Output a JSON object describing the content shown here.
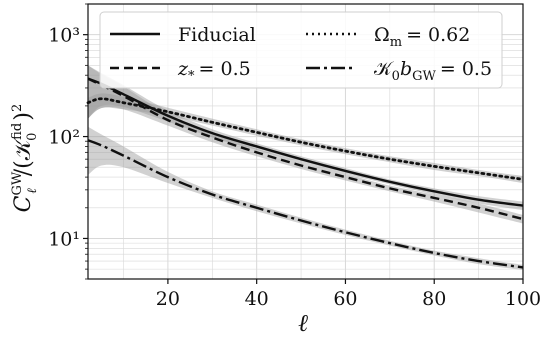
{
  "chart_data": {
    "type": "line",
    "xlabel": "ℓ",
    "ylabel": "C_ℓ^GW / (𝒦_0^fid)^2",
    "xlim": [
      2,
      100
    ],
    "ylim": [
      4,
      2000
    ],
    "yscale": "log",
    "grid": true,
    "legend_position": "top",
    "x_ticks": [
      20,
      40,
      60,
      80,
      100
    ],
    "y_ticks": [
      10,
      100,
      1000
    ],
    "y_tick_labels": [
      "10¹",
      "10²",
      "10³"
    ],
    "x": [
      2,
      5,
      10,
      20,
      30,
      40,
      50,
      60,
      70,
      80,
      90,
      100
    ],
    "series": [
      {
        "name": "Fiducial",
        "style": "solid",
        "values": [
          370,
          330,
          260,
          160,
          108,
          80,
          60,
          46,
          36,
          29,
          24,
          21
        ],
        "band_lower": [
          150,
          200,
          195,
          140,
          98,
          74,
          56,
          43,
          34,
          27,
          22,
          19
        ],
        "band_upper": [
          500,
          420,
          320,
          180,
          118,
          86,
          64,
          49,
          38,
          31,
          26,
          23
        ]
      },
      {
        "name": "z_* = 0.5",
        "style": "dashed",
        "values": [
          370,
          320,
          250,
          145,
          98,
          70,
          52,
          40,
          31,
          25,
          20,
          15.5
        ],
        "band_lower": [
          150,
          190,
          185,
          128,
          88,
          64,
          48,
          37,
          29,
          23,
          18,
          14
        ],
        "band_upper": [
          500,
          410,
          310,
          165,
          108,
          76,
          56,
          43,
          33,
          27,
          22,
          17
        ]
      },
      {
        "name": "Ω_m = 0.62",
        "style": "dotted",
        "values": [
          215,
          235,
          215,
          175,
          138,
          110,
          88,
          72,
          60,
          51,
          44,
          38
        ],
        "band_lower": [
          150,
          190,
          185,
          160,
          128,
          102,
          82,
          67,
          56,
          47,
          41,
          35
        ],
        "band_upper": [
          240,
          265,
          245,
          192,
          150,
          118,
          94,
          77,
          64,
          55,
          47,
          41
        ]
      },
      {
        "name": "𝒦_0 b_GW = 0.5",
        "style": "dashdot",
        "values": [
          92,
          82,
          65,
          40,
          27,
          20,
          15,
          11.5,
          9,
          7.2,
          6,
          5.2
        ],
        "band_lower": [
          42,
          52,
          50,
          35,
          25,
          18.5,
          14,
          10.8,
          8.5,
          6.8,
          5.6,
          4.9
        ],
        "band_upper": [
          125,
          105,
          80,
          45,
          29,
          21.5,
          16,
          12.2,
          9.5,
          7.6,
          6.4,
          5.5
        ]
      }
    ]
  },
  "legend": {
    "fiducial": "Fiducial",
    "zstar_sym": "z",
    "zstar_sub": "*",
    "zstar_val": "= 0.5",
    "omega_sym": "Ω",
    "omega_sub": "m",
    "omega_val": "= 0.62",
    "k_sym": "𝒦",
    "k_sub0": "0",
    "k_b": "b",
    "k_subgw": "GW",
    "k_val": "= 0.5"
  },
  "axes": {
    "xlabel": "ℓ",
    "y_c": "C",
    "y_sup": "GW",
    "y_sub": "ℓ",
    "y_mid": "/(",
    "y_k": "𝒦",
    "y_ksup": "fid",
    "y_ksub": "0",
    "y_close": ")",
    "y_pow": "2"
  },
  "colors": {
    "line": "#111111",
    "band": "#9a9a9a",
    "grid": "#d8d8d8"
  }
}
